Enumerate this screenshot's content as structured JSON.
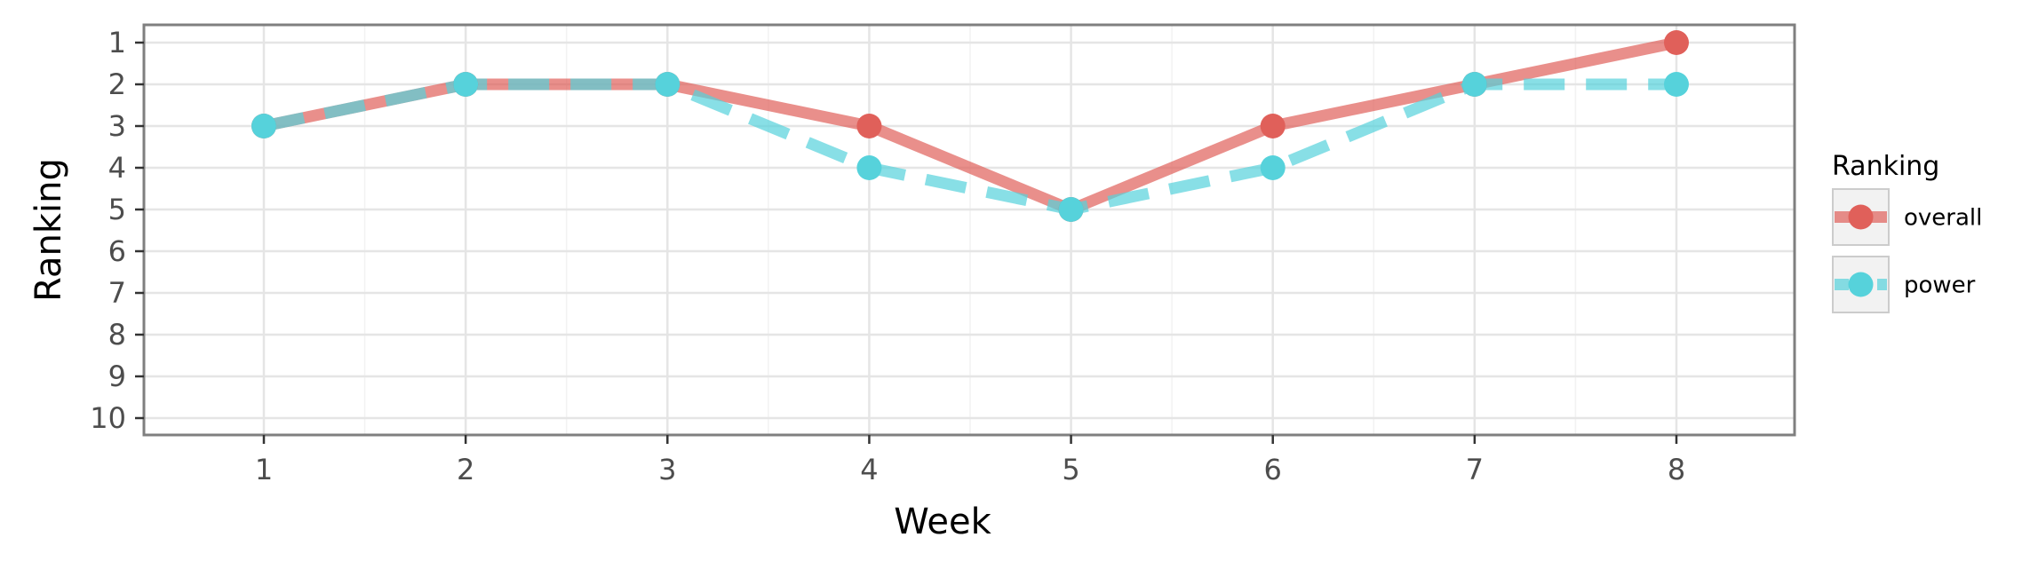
{
  "chart_data": {
    "type": "line",
    "xlabel": "Week",
    "ylabel": "Ranking",
    "x": [
      1,
      2,
      3,
      4,
      5,
      6,
      7,
      8
    ],
    "xlim": [
      1,
      8
    ],
    "ylim": [
      1,
      10
    ],
    "y_reversed": true,
    "xticks": [
      "1",
      "2",
      "3",
      "4",
      "5",
      "6",
      "7",
      "8"
    ],
    "yticks": [
      "1",
      "2",
      "3",
      "4",
      "5",
      "6",
      "7",
      "8",
      "9",
      "10"
    ],
    "grid": true,
    "legend": {
      "title": "Ranking",
      "position": "right"
    },
    "series": [
      {
        "name": "overall",
        "values": [
          3,
          2,
          2,
          3,
          5,
          3,
          2,
          1
        ],
        "color": "#e0605a",
        "line_style": "solid"
      },
      {
        "name": "power",
        "values": [
          3,
          2,
          2,
          4,
          5,
          4,
          2,
          2
        ],
        "color": "#56d2db",
        "line_style": "dashed"
      }
    ]
  }
}
